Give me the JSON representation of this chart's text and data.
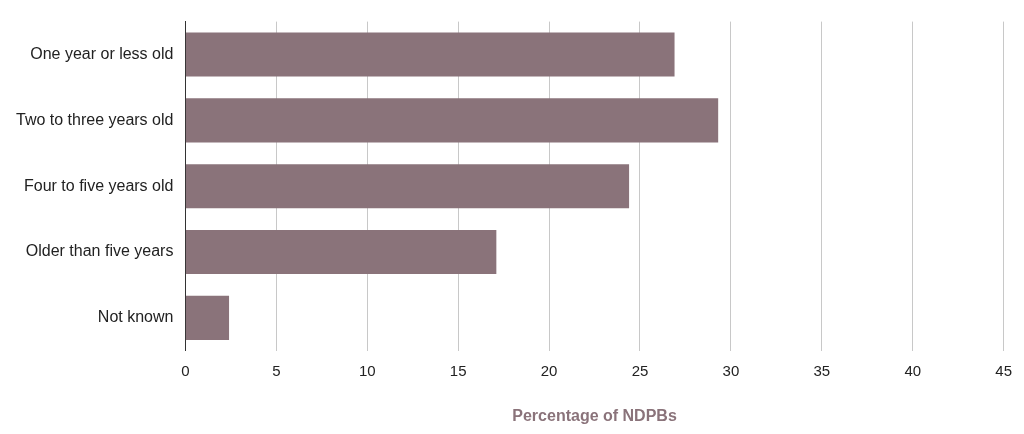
{
  "chart_data": {
    "type": "bar",
    "orientation": "horizontal",
    "categories": [
      "One year or less old",
      "Two to three years old",
      "Four to five years old",
      "Older than five years",
      "Not known"
    ],
    "values": [
      26.9,
      29.3,
      24.4,
      17.1,
      2.4
    ],
    "color": "#8a737a",
    "xlabel": "Percentage of NDPBs",
    "xlim": [
      0,
      45
    ],
    "xticks": [
      0,
      5,
      10,
      15,
      20,
      25,
      30,
      35,
      40,
      45
    ],
    "grid": "x"
  }
}
